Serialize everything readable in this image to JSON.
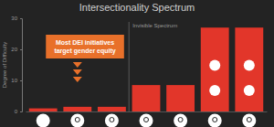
{
  "chart_data": {
    "type": "bar",
    "title": "Intersectionality Spectrum",
    "y_label": "Degree of Difficulty",
    "categories": [
      null,
      null,
      null,
      null,
      null,
      null,
      null
    ],
    "values": [
      1,
      1.5,
      1.5,
      8.5,
      8.5,
      27,
      27
    ],
    "color": "#e2362a",
    "ylim": [
      0,
      30
    ],
    "yticks": [
      0,
      10,
      20,
      30
    ],
    "grid": false,
    "annotations": [
      "Most DEI initiatives target gender equity",
      "Invisible Spectrum"
    ]
  }
}
